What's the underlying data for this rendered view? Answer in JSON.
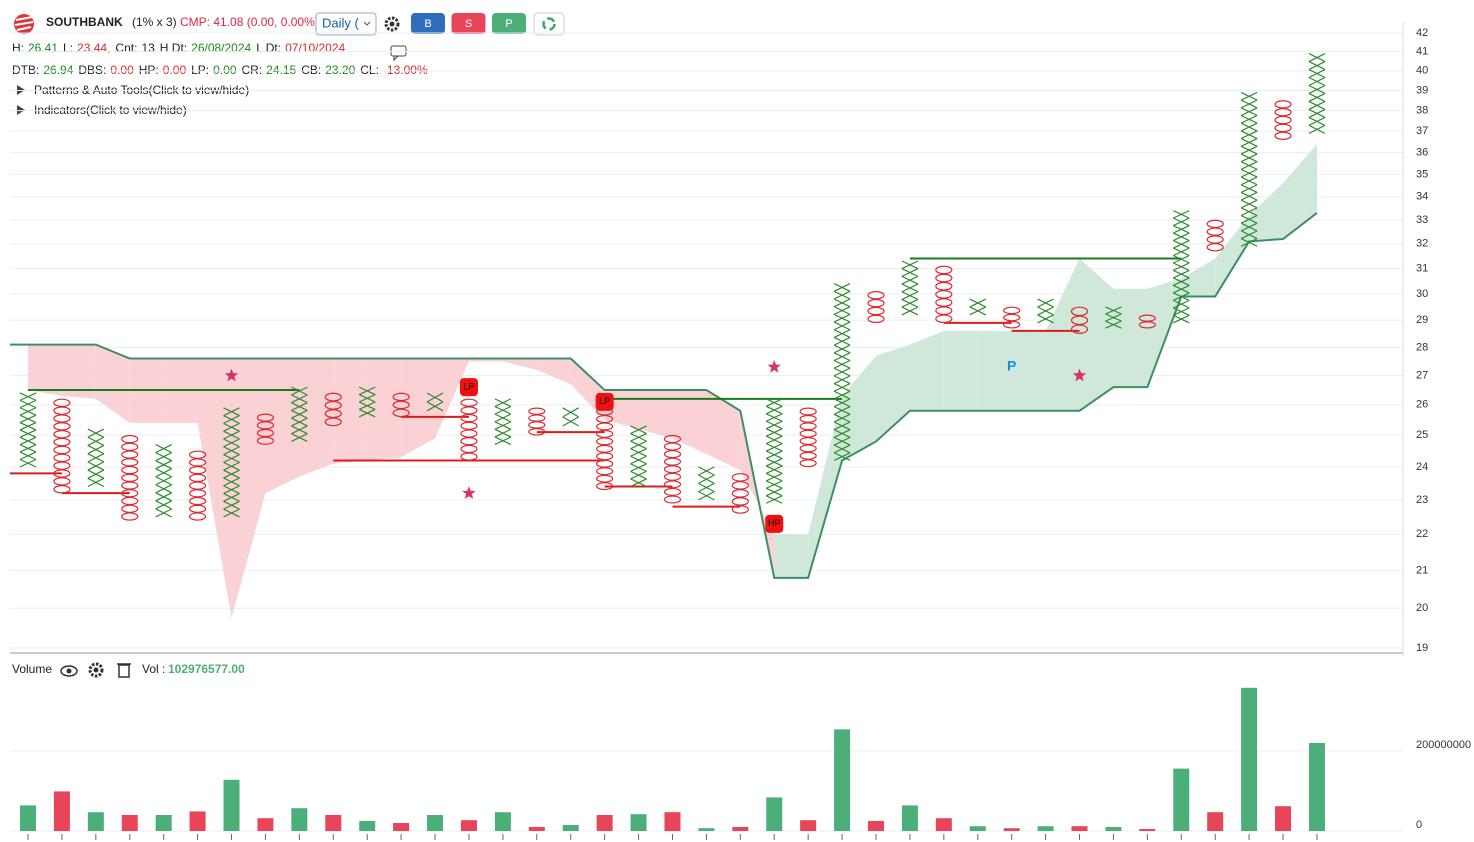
{
  "header": {
    "symbol": "SOUTHBANK",
    "box": "(1% x 3)",
    "cmp": "CMP: 41.08 (0.00, 0.00%)",
    "interval": "Daily (",
    "buttons": [
      "B",
      "S",
      "P"
    ],
    "stats1": [
      {
        "label": "H:",
        "value": "26.41",
        "color": "#1e8a1e"
      },
      {
        "label": "L:",
        "value": "23.44,",
        "color": "#d62c2c"
      },
      {
        "label": "Cnt:",
        "value": "13",
        "color": "#222"
      },
      {
        "label": "H Dt:",
        "value": "26/08/2024",
        "color": "#1e8a1e"
      },
      {
        "label": "L Dt:",
        "value": "07/10/2024",
        "color": "#d62c2c"
      }
    ],
    "stats2": [
      {
        "label": "DTB:",
        "value": "26.94",
        "color": "#1e8a1e"
      },
      {
        "label": "DBS:",
        "value": "0.00",
        "color": "#d62c2c"
      },
      {
        "label": "HP:",
        "value": "0.00",
        "color": "#d62c2c"
      },
      {
        "label": "LP:",
        "value": "0.00",
        "color": "#1e8a1e"
      },
      {
        "label": "CR:",
        "value": "24.15",
        "color": "#1e8a1e"
      },
      {
        "label": "CB:",
        "value": "23.20",
        "color": "#1e8a1e"
      },
      {
        "label": "CL:",
        "value": "-13.00%",
        "color": "#d62c2c"
      }
    ],
    "toggles": [
      "Patterns & Auto Tools(Click to view/hide)",
      "Indicators(Click to view/hide)"
    ]
  },
  "chart_data": {
    "type": "point_and_figure",
    "log_scale": true,
    "ylim": [
      19,
      42
    ],
    "yticks": [
      19,
      20,
      21,
      22,
      23,
      24,
      25,
      26,
      27,
      28,
      29,
      30,
      31,
      32,
      33,
      34,
      35,
      36,
      37,
      38,
      39,
      40,
      41,
      42
    ],
    "grid": true,
    "colors": {
      "X": "#2e8b2e",
      "O": "#e0262e"
    },
    "columns": [
      {
        "type": "X",
        "low": 24.0,
        "high": 26.4
      },
      {
        "type": "O",
        "low": 23.2,
        "high": 26.2
      },
      {
        "type": "X",
        "low": 23.4,
        "high": 25.2
      },
      {
        "type": "O",
        "low": 22.4,
        "high": 25.0
      },
      {
        "type": "X",
        "low": 22.5,
        "high": 24.7
      },
      {
        "type": "O",
        "low": 22.4,
        "high": 24.5
      },
      {
        "type": "X",
        "low": 22.5,
        "high": 25.9
      },
      {
        "type": "O",
        "low": 24.7,
        "high": 25.7
      },
      {
        "type": "X",
        "low": 24.8,
        "high": 26.6
      },
      {
        "type": "O",
        "low": 25.3,
        "high": 26.4
      },
      {
        "type": "X",
        "low": 25.6,
        "high": 26.6
      },
      {
        "type": "O",
        "low": 25.6,
        "high": 26.4
      },
      {
        "type": "X",
        "low": 25.8,
        "high": 26.4
      },
      {
        "type": "O",
        "low": 24.2,
        "high": 26.2
      },
      {
        "type": "X",
        "low": 24.7,
        "high": 26.2
      },
      {
        "type": "O",
        "low": 25.0,
        "high": 25.9
      },
      {
        "type": "X",
        "low": 25.3,
        "high": 25.9
      },
      {
        "type": "O",
        "low": 23.3,
        "high": 25.9
      },
      {
        "type": "X",
        "low": 23.4,
        "high": 25.3
      },
      {
        "type": "O",
        "low": 22.9,
        "high": 25.0
      },
      {
        "type": "X",
        "low": 23.0,
        "high": 24.0
      },
      {
        "type": "O",
        "low": 22.6,
        "high": 23.8
      },
      {
        "type": "X",
        "low": 22.9,
        "high": 26.2
      },
      {
        "type": "O",
        "low": 24.0,
        "high": 25.9
      },
      {
        "type": "X",
        "low": 24.2,
        "high": 30.4
      },
      {
        "type": "O",
        "low": 28.9,
        "high": 30.1
      },
      {
        "type": "X",
        "low": 29.2,
        "high": 31.3
      },
      {
        "type": "O",
        "low": 28.9,
        "high": 31.1
      },
      {
        "type": "X",
        "low": 29.2,
        "high": 29.8
      },
      {
        "type": "O",
        "low": 28.7,
        "high": 29.5
      },
      {
        "type": "X",
        "low": 28.9,
        "high": 29.8
      },
      {
        "type": "O",
        "low": 28.5,
        "high": 29.5
      },
      {
        "type": "X",
        "low": 28.7,
        "high": 29.5
      },
      {
        "type": "O",
        "low": 28.7,
        "high": 29.2
      },
      {
        "type": "X",
        "low": 28.9,
        "high": 33.4
      },
      {
        "type": "O",
        "low": 31.7,
        "high": 33.0
      },
      {
        "type": "X",
        "low": 31.9,
        "high": 38.9
      },
      {
        "type": "O",
        "low": 36.6,
        "high": 38.5
      },
      {
        "type": "X",
        "low": 36.9,
        "high": 40.9
      }
    ],
    "cloud": {
      "line_color": "#3d8f62",
      "up_fill": "#cfe8da",
      "down_fill": "#fad2d5",
      "lead_a": [
        28.1,
        28.1,
        28.1,
        27.6,
        27.6,
        27.6,
        27.6,
        27.6,
        27.6,
        27.6,
        27.6,
        27.6,
        27.6,
        27.6,
        27.6,
        27.6,
        27.6,
        26.5,
        26.5,
        26.5,
        26.5,
        25.8,
        20.8,
        20.8,
        24.2,
        24.8,
        25.8,
        25.8,
        25.8,
        25.8,
        25.8,
        25.8,
        26.6,
        26.6,
        29.9,
        29.9,
        32.1,
        32.2,
        33.3
      ],
      "lead_b": [
        26.5,
        26.3,
        26.2,
        25.4,
        25.4,
        25.4,
        19.75,
        23.2,
        23.7,
        24.1,
        24.2,
        24.3,
        24.9,
        27.5,
        27.5,
        27.2,
        26.7,
        25.5,
        25.2,
        24.9,
        24.4,
        23.9,
        22.0,
        22.0,
        26.3,
        27.7,
        28.1,
        28.6,
        28.6,
        28.6,
        28.6,
        31.4,
        30.2,
        30.2,
        30.6,
        31.4,
        33.2,
        34.6,
        36.4
      ]
    },
    "levels": [
      {
        "price": 26.5,
        "from": 0,
        "to": 8,
        "color": "#1b7a1b"
      },
      {
        "price": 26.2,
        "from": 17,
        "to": 24,
        "color": "#1b7a1b"
      },
      {
        "price": 31.4,
        "from": 26,
        "to": 34,
        "color": "#1b7a1b"
      },
      {
        "price": 23.8,
        "from": 0,
        "to": 1,
        "color": "#d91c1c"
      },
      {
        "price": 23.2,
        "from": 1,
        "to": 3,
        "color": "#d91c1c"
      },
      {
        "price": 24.2,
        "from": 9,
        "to": 17,
        "color": "#d91c1c"
      },
      {
        "price": 25.6,
        "from": 11,
        "to": 13,
        "color": "#d91c1c"
      },
      {
        "price": 25.1,
        "from": 15,
        "to": 17,
        "color": "#d91c1c"
      },
      {
        "price": 23.4,
        "from": 17,
        "to": 19,
        "color": "#d91c1c"
      },
      {
        "price": 22.8,
        "from": 19,
        "to": 21,
        "color": "#d91c1c"
      },
      {
        "price": 28.9,
        "from": 27,
        "to": 29,
        "color": "#d91c1c"
      },
      {
        "price": 28.6,
        "from": 29,
        "to": 31,
        "color": "#d91c1c"
      }
    ],
    "stars": [
      {
        "column": 6,
        "price": 27.0
      },
      {
        "column": 13,
        "price": 23.2
      },
      {
        "column": 22,
        "price": 27.3
      },
      {
        "column": 31,
        "price": 27.0
      }
    ],
    "markers": [
      {
        "label": "LP",
        "column": 13,
        "price": 26.6
      },
      {
        "label": "LP",
        "column": 17,
        "price": 26.1
      },
      {
        "label": "HP",
        "column": 22,
        "price": 22.3
      }
    ],
    "pattern_labels": [
      {
        "label": "P",
        "column": 29,
        "price": 27.3
      }
    ]
  },
  "volume": {
    "type": "bar",
    "title": "Volume",
    "vol_label": "Vol :",
    "vol_value": "102976577.00",
    "ylim": [
      0,
      380000000
    ],
    "yticks": [
      0,
      200000000
    ],
    "values": [
      64000000,
      99000000,
      47000000,
      40000000,
      40000000,
      49000000,
      128000000,
      32000000,
      57000000,
      40000000,
      25000000,
      20000000,
      40000000,
      27000000,
      47000000,
      10000000,
      15000000,
      40000000,
      42000000,
      47000000,
      7000000,
      10000000,
      84000000,
      27000000,
      254000000,
      25000000,
      64000000,
      32000000,
      12000000,
      7000000,
      12000000,
      12000000,
      10000000,
      5000000,
      156000000,
      47000000,
      358000000,
      62000000,
      220000000
    ]
  }
}
